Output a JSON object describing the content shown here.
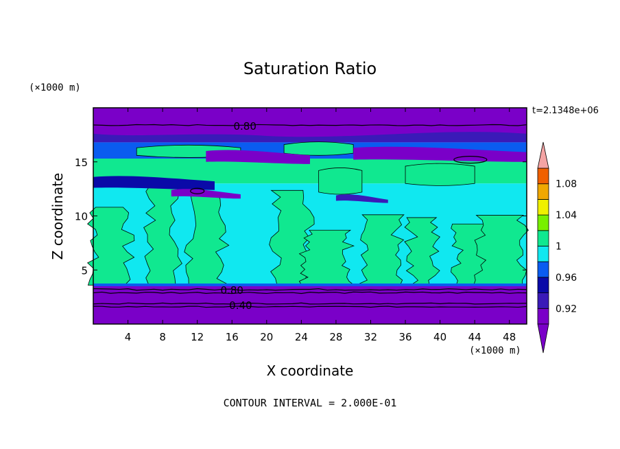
{
  "chart_data": {
    "type": "heatmap",
    "title": "Saturation Ratio",
    "xlabel": "X coordinate",
    "ylabel": "Z coordinate",
    "x_unit": "(×1000 m)",
    "y_unit": "(×1000 m)",
    "time_label": "t=2.1348e+06",
    "footer": "CONTOUR INTERVAL = 2.000E-01",
    "xlim": [
      0,
      50
    ],
    "ylim": [
      0,
      20
    ],
    "x_ticks": [
      4,
      8,
      12,
      16,
      20,
      24,
      28,
      32,
      36,
      40,
      44,
      48
    ],
    "y_ticks": [
      5,
      10,
      15
    ],
    "contour_labels": [
      {
        "text": "0.80",
        "x": 17.5,
        "y": 18.3
      },
      {
        "text": "0.80",
        "x": 16,
        "y": 3.1
      },
      {
        "text": "0.40",
        "x": 17,
        "y": 1.7
      }
    ],
    "colorbar": {
      "levels": [
        0.9,
        0.92,
        0.94,
        0.96,
        0.98,
        1.0,
        1.02,
        1.04,
        1.06,
        1.08,
        1.1
      ],
      "tick_labels": [
        "0.92",
        "0.96",
        "1",
        "1.04",
        "1.08"
      ],
      "tick_values": [
        0.92,
        0.96,
        1.0,
        1.04,
        1.08
      ],
      "colors": [
        "#7a00c8",
        "#3a1ab8",
        "#0a0aa8",
        "#0a5cf0",
        "#10e8f0",
        "#10e890",
        "#78f000",
        "#f0f000",
        "#f0a800",
        "#f06000",
        "#f02020"
      ],
      "over_color": "#f4a4a4",
      "under_color": "#7a00c8"
    },
    "bands": [
      {
        "z_top": 20,
        "z_bottom": 18.6,
        "value": 0.7
      },
      {
        "z_top": 18.6,
        "z_bottom": 16.8,
        "value": 0.92
      },
      {
        "z_top": 16.8,
        "z_bottom": 15.3,
        "value": 0.97
      },
      {
        "z_top": 15.3,
        "z_bottom": 13.0,
        "value": 1.0
      },
      {
        "z_top": 13.0,
        "z_bottom": 3.6,
        "value": 0.99
      },
      {
        "z_top": 3.6,
        "z_bottom": 0,
        "value": 0.5
      }
    ]
  }
}
